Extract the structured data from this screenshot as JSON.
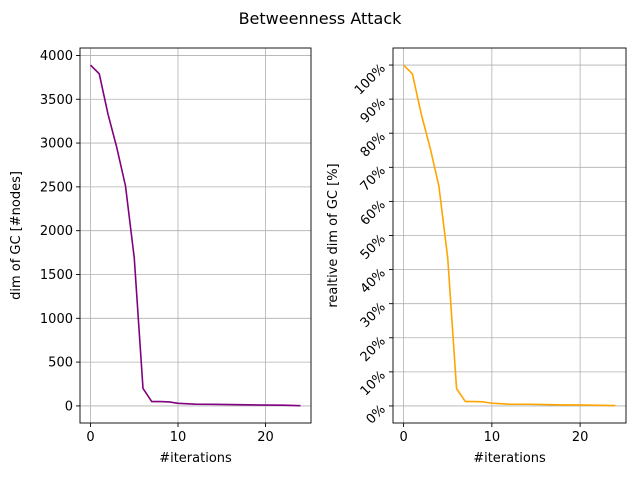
{
  "figure": {
    "title": "Betweenness Attack"
  },
  "chart_data": [
    {
      "type": "line",
      "title": "",
      "xlabel": "#iterations",
      "ylabel": "dim of GC [#nodes]",
      "xlim": [
        -1.2,
        25.2
      ],
      "ylim": [
        -195,
        4085
      ],
      "xticks": [
        0,
        10,
        20
      ],
      "xtick_labels": [
        "0",
        "10",
        "20"
      ],
      "yticks": [
        0,
        500,
        1000,
        1500,
        2000,
        2500,
        3000,
        3500,
        4000
      ],
      "ytick_labels": [
        "0",
        "500",
        "1000",
        "1500",
        "2000",
        "2500",
        "3000",
        "3500",
        "4000"
      ],
      "grid": true,
      "color": "#800080",
      "x": [
        0,
        1,
        2,
        3,
        4,
        5,
        6,
        7,
        8,
        9,
        10,
        12,
        14,
        16,
        18,
        20,
        22,
        24
      ],
      "y": [
        3890,
        3790,
        3330,
        2950,
        2510,
        1690,
        200,
        50,
        50,
        45,
        30,
        20,
        18,
        15,
        12,
        10,
        8,
        3
      ]
    },
    {
      "type": "line",
      "title": "",
      "xlabel": "#iterations",
      "ylabel": "realtive dim of GC [%]",
      "xlim": [
        -1.2,
        25.2
      ],
      "ylim": [
        -5,
        105
      ],
      "xticks": [
        0,
        10,
        20
      ],
      "xtick_labels": [
        "0",
        "10",
        "20"
      ],
      "yticks": [
        0,
        10,
        20,
        30,
        40,
        50,
        60,
        70,
        80,
        90,
        100
      ],
      "ytick_labels": [
        "0%",
        "10%",
        "20%",
        "30%",
        "40%",
        "50%",
        "60%",
        "70%",
        "80%",
        "90%",
        "100%"
      ],
      "grid": true,
      "color": "#ffa500",
      "x": [
        0,
        1,
        2,
        3,
        4,
        5,
        6,
        7,
        8,
        9,
        10,
        12,
        14,
        16,
        18,
        20,
        22,
        24
      ],
      "y": [
        100,
        97.4,
        85.6,
        75.8,
        64.5,
        43.4,
        5.1,
        1.3,
        1.3,
        1.2,
        0.8,
        0.5,
        0.5,
        0.4,
        0.3,
        0.3,
        0.2,
        0.1
      ]
    }
  ]
}
